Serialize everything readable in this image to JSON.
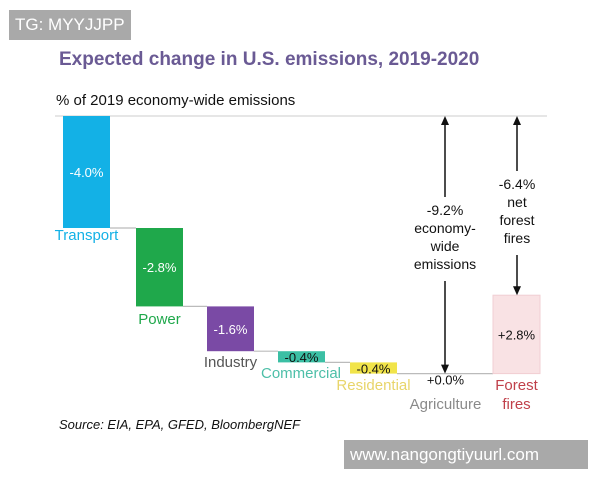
{
  "watermarks": {
    "top": "TG: MYYJJPP",
    "bottom": "www.nangongtiyuurl.com"
  },
  "chart_data": {
    "type": "waterfall",
    "title": "Expected change in U.S. emissions, 2019-2020",
    "ylabel": "% of 2019 economy-wide emissions",
    "categories": [
      "Transport",
      "Power",
      "Industry",
      "Commercial",
      "Residential",
      "Agriculture",
      "Forest fires"
    ],
    "values": [
      -4.0,
      -2.8,
      -1.6,
      -0.4,
      -0.4,
      0.0,
      2.8
    ],
    "value_labels": [
      "-4.0%",
      "-2.8%",
      "-1.6%",
      "-0.4%",
      "-0.4%",
      "+0.0%",
      "+2.8%"
    ],
    "colors": [
      "#13b1e6",
      "#1fa84b",
      "#7a4aa5",
      "#3bbfa4",
      "#f1e44a",
      "#999999",
      "#f9e2e4"
    ],
    "label_colors": [
      "#13b1e6",
      "#1fa84b",
      "#555555",
      "#4dbfa8",
      "#e8d56a",
      "#8a8a8a",
      "#c0404a"
    ],
    "annotations": [
      {
        "text": [
          "-9.2%",
          "economy-",
          "wide",
          "emissions"
        ],
        "value": -9.2
      },
      {
        "text": [
          "-6.4%",
          "net",
          "forest",
          "fires"
        ],
        "value": -6.4
      }
    ],
    "source": "Source: EIA, EPA, GFED, BloombergNEF"
  }
}
